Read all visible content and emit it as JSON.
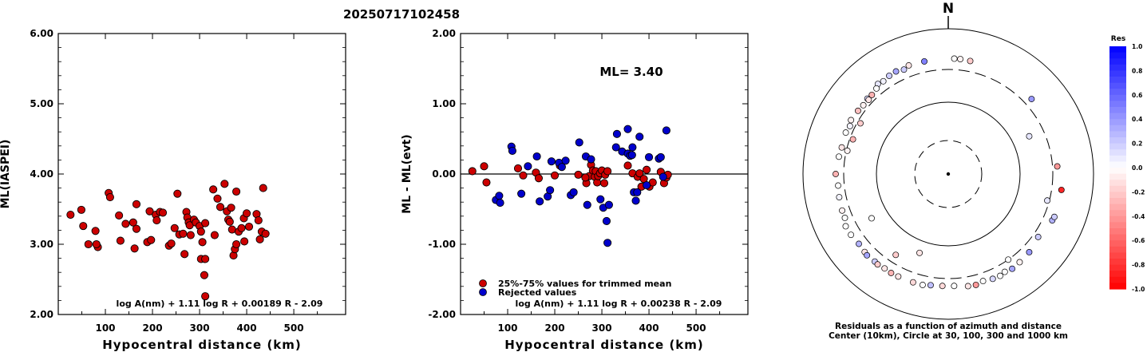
{
  "title": "20250717102458",
  "chart_data": [
    {
      "type": "scatter",
      "xlabel": "Hypocentral distance (km)",
      "ylabel": "ML(IASPEI)",
      "xlim": [
        0,
        610
      ],
      "ylim": [
        2.0,
        6.0
      ],
      "xticks": [
        100,
        200,
        300,
        400,
        500
      ],
      "yticks": [
        "2.00",
        "3.00",
        "4.00",
        "5.00",
        "6.00"
      ],
      "formula": "log A(nm) + 1.11 log R + 0.00189 R - 2.09",
      "marker_color": "#cc0000",
      "points": [
        [
          26,
          3.42
        ],
        [
          49,
          3.49
        ],
        [
          53,
          3.26
        ],
        [
          64,
          3.0
        ],
        [
          79,
          3.19
        ],
        [
          84,
          2.96
        ],
        [
          81,
          3.0
        ],
        [
          107,
          3.73
        ],
        [
          110,
          3.67
        ],
        [
          129,
          3.41
        ],
        [
          132,
          3.05
        ],
        [
          143,
          3.29
        ],
        [
          159,
          3.31
        ],
        [
          166,
          3.57
        ],
        [
          166,
          3.22
        ],
        [
          162,
          2.94
        ],
        [
          189,
          3.03
        ],
        [
          194,
          3.47
        ],
        [
          197,
          3.06
        ],
        [
          207,
          3.42
        ],
        [
          209,
          3.34
        ],
        [
          216,
          3.46
        ],
        [
          222,
          3.45
        ],
        [
          235,
          2.98
        ],
        [
          240,
          3.01
        ],
        [
          247,
          3.23
        ],
        [
          253,
          3.72
        ],
        [
          257,
          3.14
        ],
        [
          265,
          3.15
        ],
        [
          272,
          3.46
        ],
        [
          268,
          2.86
        ],
        [
          274,
          3.38
        ],
        [
          277,
          3.31
        ],
        [
          279,
          3.27
        ],
        [
          281,
          3.13
        ],
        [
          288,
          3.35
        ],
        [
          292,
          3.31
        ],
        [
          300,
          3.26
        ],
        [
          303,
          3.18
        ],
        [
          303,
          2.79
        ],
        [
          306,
          3.03
        ],
        [
          312,
          3.3
        ],
        [
          312,
          2.79
        ],
        [
          310,
          2.56
        ],
        [
          312,
          2.26
        ],
        [
          329,
          3.78
        ],
        [
          332,
          3.13
        ],
        [
          338,
          3.65
        ],
        [
          344,
          3.53
        ],
        [
          353,
          3.86
        ],
        [
          358,
          3.47
        ],
        [
          361,
          3.35
        ],
        [
          364,
          3.32
        ],
        [
          367,
          3.52
        ],
        [
          369,
          3.21
        ],
        [
          372,
          2.84
        ],
        [
          375,
          2.93
        ],
        [
          378,
          3.0
        ],
        [
          378,
          3.75
        ],
        [
          383,
          3.18
        ],
        [
          389,
          3.23
        ],
        [
          394,
          3.37
        ],
        [
          395,
          3.04
        ],
        [
          400,
          3.44
        ],
        [
          405,
          3.25
        ],
        [
          421,
          3.43
        ],
        [
          425,
          3.34
        ],
        [
          428,
          3.07
        ],
        [
          432,
          3.18
        ],
        [
          435,
          3.8
        ],
        [
          440,
          3.15
        ]
      ]
    },
    {
      "type": "scatter",
      "xlabel": "Hypocentral distance (km)",
      "ylabel": "ML - ML(evt)",
      "xlim": [
        0,
        610
      ],
      "ylim": [
        -2.0,
        2.0
      ],
      "xticks": [
        100,
        200,
        300,
        400,
        500
      ],
      "yticks": [
        "-2.00",
        "-1.00",
        "0.00",
        "1.00",
        "2.00"
      ],
      "annotation": "ML= 3.40",
      "formula": "log A(nm) + 1.11 log R + 0.00238 R - 2.09",
      "legend": [
        {
          "label": "25%-75% values for trimmed mean",
          "color": "#cc0000"
        },
        {
          "label": "Rejected values",
          "color": "#0000cc"
        }
      ],
      "series": [
        {
          "name": "25%-75% values for trimmed mean",
          "color": "#cc0000",
          "points": [
            [
              25,
              0.04
            ],
            [
              50,
              0.11
            ],
            [
              55,
              -0.12
            ],
            [
              122,
              0.08
            ],
            [
              133,
              -0.02
            ],
            [
              160,
              0.02
            ],
            [
              166,
              -0.06
            ],
            [
              200,
              -0.02
            ],
            [
              211,
              0.12
            ],
            [
              250,
              -0.01
            ],
            [
              267,
              -0.13
            ],
            [
              273,
              -0.03
            ],
            [
              277,
              0.13
            ],
            [
              281,
              0.05
            ],
            [
              285,
              -0.04
            ],
            [
              287,
              0.04
            ],
            [
              290,
              -0.12
            ],
            [
              292,
              -0.03
            ],
            [
              296,
              0.01
            ],
            [
              300,
              0.05
            ],
            [
              305,
              -0.13
            ],
            [
              307,
              -0.01
            ],
            [
              312,
              0.04
            ],
            [
              355,
              0.12
            ],
            [
              365,
              0.01
            ],
            [
              376,
              -0.04
            ],
            [
              380,
              0.01
            ],
            [
              384,
              -0.18
            ],
            [
              389,
              -0.07
            ],
            [
              395,
              0.06
            ],
            [
              401,
              -0.18
            ],
            [
              408,
              -0.12
            ],
            [
              425,
              0.03
            ],
            [
              432,
              -0.13
            ],
            [
              437,
              -0.05
            ],
            [
              440,
              -0.01
            ],
            [
              265,
              -0.05
            ]
          ]
        },
        {
          "name": "Rejected values",
          "color": "#0000cc",
          "points": [
            [
              75,
              -0.37
            ],
            [
              82,
              -0.31
            ],
            [
              84,
              -0.41
            ],
            [
              108,
              0.39
            ],
            [
              110,
              0.33
            ],
            [
              129,
              -0.28
            ],
            [
              143,
              0.11
            ],
            [
              162,
              0.25
            ],
            [
              168,
              -0.39
            ],
            [
              185,
              -0.32
            ],
            [
              190,
              -0.23
            ],
            [
              193,
              0.18
            ],
            [
              209,
              0.16
            ],
            [
              215,
              0.1
            ],
            [
              223,
              0.19
            ],
            [
              234,
              -0.3
            ],
            [
              240,
              -0.26
            ],
            [
              252,
              0.45
            ],
            [
              266,
              0.25
            ],
            [
              269,
              -0.44
            ],
            [
              277,
              0.21
            ],
            [
              297,
              -0.36
            ],
            [
              303,
              -0.48
            ],
            [
              310,
              -0.67
            ],
            [
              312,
              -0.98
            ],
            [
              315,
              -0.44
            ],
            [
              330,
              0.38
            ],
            [
              332,
              0.57
            ],
            [
              343,
              0.32
            ],
            [
              355,
              0.64
            ],
            [
              355,
              0.29
            ],
            [
              360,
              0.26
            ],
            [
              365,
              0.38
            ],
            [
              368,
              -0.26
            ],
            [
              372,
              -0.38
            ],
            [
              375,
              -0.26
            ],
            [
              380,
              0.53
            ],
            [
              395,
              -0.16
            ],
            [
              400,
              0.24
            ],
            [
              421,
              0.22
            ],
            [
              425,
              0.24
            ],
            [
              430,
              -0.04
            ],
            [
              437,
              0.62
            ],
            [
              364,
              0.27
            ]
          ]
        }
      ]
    },
    {
      "type": "scatter",
      "subtype": "polar",
      "north_label": "N",
      "caption_line1": "Residuals as a function of azimuth and distance",
      "caption_line2": "Center (10km), Circle at 30, 100, 300 and 1000 km",
      "colorbar_title": "Res",
      "colorbar_ticks": [
        "1.0",
        "0.8",
        "0.6",
        "0.4",
        "0.2",
        "0.0",
        "-0.2",
        "-0.4",
        "-0.6",
        "-0.8",
        "-1.0"
      ],
      "colorbar_positive_color": "#0000ff",
      "colorbar_negative_color": "#ff0000",
      "points": [
        [
          3,
          415,
          0.0
        ],
        [
          6,
          415,
          -0.05
        ],
        [
          11,
          410,
          -0.2
        ],
        [
          348,
          410,
          0.5
        ],
        [
          340,
          415,
          -0.1
        ],
        [
          337,
          390,
          0.2
        ],
        [
          333,
          410,
          0.35
        ],
        [
          329,
          404,
          0.2
        ],
        [
          325,
          388,
          0.05
        ],
        [
          322,
          400,
          0.1
        ],
        [
          320,
          370,
          0.0
        ],
        [
          316,
          352,
          -0.3
        ],
        [
          313,
          358,
          0.15
        ],
        [
          309,
          345,
          -0.05
        ],
        [
          305,
          354,
          -0.25
        ],
        [
          299,
          365,
          -0.05
        ],
        [
          296,
          346,
          0.05
        ],
        [
          292,
          358,
          0.0
        ],
        [
          284,
          350,
          -0.1
        ],
        [
          279,
          360,
          0.0
        ],
        [
          270,
          380,
          -0.3
        ],
        [
          264,
          360,
          0.0
        ],
        [
          258,
          368,
          0.05
        ],
        [
          251,
          376,
          -0.05
        ],
        [
          247,
          377,
          0.0
        ],
        [
          243,
          410,
          0.0
        ],
        [
          238,
          405,
          0.0
        ],
        [
          232,
          390,
          0.3
        ],
        [
          227,
          400,
          -0.1
        ],
        [
          225,
          408,
          0.35
        ],
        [
          220,
          400,
          0.2
        ],
        [
          218,
          405,
          -0.2
        ],
        [
          214,
          395,
          -0.1
        ],
        [
          210,
          400,
          -0.3
        ],
        [
          206,
          397,
          -0.1
        ],
        [
          198,
          395,
          -0.15
        ],
        [
          193,
          395,
          0.0
        ],
        [
          189,
          380,
          0.25
        ],
        [
          183,
          375,
          -0.15
        ],
        [
          177,
          375,
          0.0
        ],
        [
          170,
          395,
          -0.1
        ],
        [
          166,
          400,
          -0.4
        ],
        [
          162,
          380,
          0.0
        ],
        [
          157,
          395,
          0.15
        ],
        [
          153,
          400,
          0.0
        ],
        [
          150,
          385,
          0.0
        ],
        [
          146,
          400,
          0.35
        ],
        [
          141,
          390,
          -0.05
        ],
        [
          134,
          380,
          0.4
        ],
        [
          125,
          350,
          0.2
        ],
        [
          114,
          395,
          0.3
        ],
        [
          112,
          402,
          0.2
        ],
        [
          98,
          400,
          -0.85
        ],
        [
          86,
          345,
          -0.4
        ],
        [
          48,
          375,
          0.4
        ],
        [
          300,
          270,
          -0.2
        ],
        [
          290,
          270,
          -0.3
        ],
        [
          283,
          290,
          -0.05
        ],
        [
          240,
          175,
          0.0
        ],
        [
          213,
          228,
          -0.2
        ],
        [
          200,
          150,
          -0.1
        ],
        [
          145,
          300,
          0.0
        ],
        [
          105,
          280,
          0.1
        ],
        [
          65,
          180,
          0.1
        ],
        [
          313,
          340,
          -0.1
        ]
      ]
    }
  ]
}
